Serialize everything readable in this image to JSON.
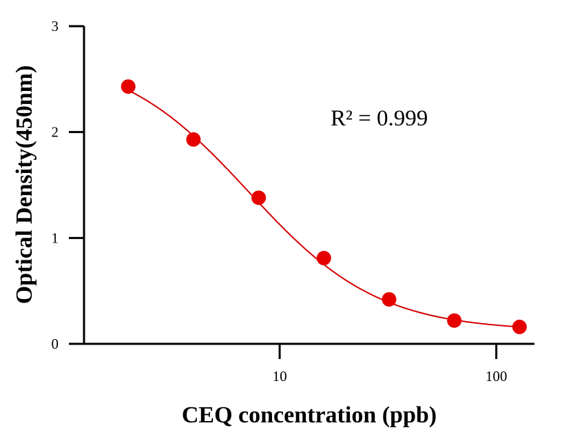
{
  "chart_data": {
    "type": "scatter",
    "xlabel": "CEQ concentration (ppb)",
    "ylabel": "Optical Density(450nm)",
    "x_scale": "log",
    "xlim": [
      1.25,
      150
    ],
    "ylim": [
      0,
      3
    ],
    "x_ticks": [
      10,
      100
    ],
    "x_tick_labels": [
      "10",
      "100"
    ],
    "y_ticks": [
      0,
      1,
      2,
      3
    ],
    "y_tick_labels": [
      "0",
      "1",
      "2",
      "3"
    ],
    "grid": false,
    "legend": "none",
    "annotation": "R² = 0.999",
    "series": [
      {
        "x": [
          2,
          4,
          8,
          16,
          32,
          64,
          128
        ],
        "y": [
          2.43,
          1.93,
          1.38,
          0.81,
          0.42,
          0.22,
          0.16
        ],
        "fit": "four-parameter logistic",
        "color": "#e60000"
      }
    ],
    "fit_curve": {
      "A": 2.75,
      "D": 0.12,
      "C": 7.2,
      "B": 1.45,
      "color": "#d40000"
    }
  }
}
